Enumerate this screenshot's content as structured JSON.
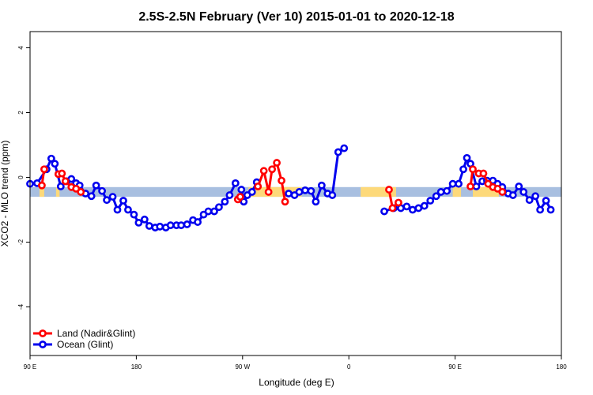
{
  "chart_data": {
    "type": "line",
    "title": "2.5S-2.5N February (Ver 10)   2015-01-01 to 2020-12-18",
    "xlabel": "Longitude (deg E)",
    "ylabel": "XCO2 - MLO trend (ppm)",
    "xlim": [
      90,
      540
    ],
    "ylim": [
      -5.5,
      4.5
    ],
    "x_ticks": [
      {
        "value": 90,
        "label": "90 E"
      },
      {
        "value": 180,
        "label": "180"
      },
      {
        "value": 270,
        "label": "90 W"
      },
      {
        "value": 360,
        "label": "0"
      },
      {
        "value": 450,
        "label": "90 E"
      },
      {
        "value": 540,
        "label": "180"
      }
    ],
    "y_ticks": [
      {
        "value": -4,
        "label": "-4"
      },
      {
        "value": -2,
        "label": "-2"
      },
      {
        "value": 0,
        "label": "0"
      },
      {
        "value": 2,
        "label": "2"
      },
      {
        "value": 4,
        "label": "4"
      }
    ],
    "legend": {
      "position": "bottom-left",
      "entries": [
        {
          "label": "Land (Nadir&Glint)",
          "color": "#ff0000"
        },
        {
          "label": "Ocean (Glint)",
          "color": "#0000ee"
        }
      ]
    },
    "background_band": {
      "y_range": [
        -0.6,
        -0.3
      ],
      "ocean_color": "#a8bfe0",
      "land_color": "#fdd97a",
      "land_intervals": [
        [
          98,
          102
        ],
        [
          112,
          115
        ],
        [
          275,
          320
        ],
        [
          370,
          400
        ],
        [
          448,
          455
        ],
        [
          465,
          487
        ]
      ]
    },
    "series": [
      {
        "name": "Land (Nadir&Glint)",
        "color": "#ff0000",
        "segments": [
          [
            [
              100,
              -0.25
            ],
            [
              102,
              0.25
            ]
          ],
          [
            [
              114,
              0.1
            ],
            [
              117,
              0.12
            ],
            [
              120,
              -0.12
            ],
            [
              125,
              -0.3
            ],
            [
              129,
              -0.35
            ],
            [
              133,
              -0.45
            ]
          ],
          [
            [
              266,
              -0.68
            ],
            [
              268,
              -0.6
            ]
          ],
          [
            [
              283,
              -0.28
            ],
            [
              288,
              0.2
            ],
            [
              292,
              -0.45
            ],
            [
              295,
              0.25
            ],
            [
              299,
              0.45
            ],
            [
              303,
              -0.1
            ],
            [
              306,
              -0.75
            ]
          ],
          [
            [
              394,
              -0.38
            ],
            [
              397,
              -0.95
            ],
            [
              402,
              -0.78
            ]
          ],
          [
            [
              463,
              -0.28
            ],
            [
              465,
              0.25
            ],
            [
              470,
              0.12
            ],
            [
              474,
              0.12
            ],
            [
              478,
              -0.2
            ],
            [
              482,
              -0.3
            ],
            [
              486,
              -0.35
            ],
            [
              490,
              -0.45
            ]
          ]
        ]
      },
      {
        "name": "Ocean (Glint)",
        "color": "#0000ee",
        "segments": [
          [
            [
              90,
              -0.2
            ],
            [
              96,
              -0.18
            ],
            [
              104,
              0.25
            ],
            [
              108,
              0.58
            ],
            [
              111,
              0.42
            ],
            [
              116,
              -0.28
            ],
            [
              121,
              -0.12
            ],
            [
              125,
              -0.05
            ],
            [
              129,
              -0.18
            ],
            [
              132,
              -0.25
            ],
            [
              137,
              -0.5
            ],
            [
              142,
              -0.58
            ],
            [
              146,
              -0.25
            ],
            [
              151,
              -0.42
            ],
            [
              155,
              -0.7
            ],
            [
              160,
              -0.6
            ],
            [
              164,
              -1.0
            ],
            [
              169,
              -0.72
            ],
            [
              173,
              -1.0
            ],
            [
              178,
              -1.15
            ],
            [
              182,
              -1.4
            ],
            [
              187,
              -1.3
            ],
            [
              191,
              -1.5
            ],
            [
              196,
              -1.55
            ],
            [
              200,
              -1.52
            ],
            [
              205,
              -1.55
            ],
            [
              209,
              -1.48
            ],
            [
              214,
              -1.48
            ],
            [
              218,
              -1.48
            ],
            [
              223,
              -1.45
            ],
            [
              228,
              -1.32
            ],
            [
              232,
              -1.38
            ],
            [
              237,
              -1.15
            ],
            [
              241,
              -1.05
            ],
            [
              246,
              -1.05
            ],
            [
              250,
              -0.92
            ],
            [
              255,
              -0.75
            ],
            [
              259,
              -0.55
            ],
            [
              264,
              -0.18
            ]
          ],
          [
            [
              269,
              -0.38
            ],
            [
              271,
              -0.75
            ],
            [
              274,
              -0.55
            ],
            [
              278,
              -0.45
            ],
            [
              282,
              -0.15
            ]
          ],
          [
            [
              309,
              -0.5
            ],
            [
              314,
              -0.55
            ],
            [
              318,
              -0.45
            ],
            [
              323,
              -0.4
            ],
            [
              328,
              -0.42
            ],
            [
              332,
              -0.75
            ],
            [
              337,
              -0.25
            ],
            [
              342,
              -0.5
            ],
            [
              346,
              -0.55
            ],
            [
              351,
              0.78
            ],
            [
              356,
              0.9
            ]
          ],
          [
            [
              390,
              -1.05
            ],
            [
              398,
              -0.95
            ],
            [
              404,
              -0.95
            ],
            [
              409,
              -0.9
            ],
            [
              414,
              -1.0
            ],
            [
              419,
              -0.95
            ],
            [
              424,
              -0.88
            ],
            [
              429,
              -0.72
            ],
            [
              434,
              -0.58
            ],
            [
              438,
              -0.45
            ],
            [
              443,
              -0.42
            ],
            [
              448,
              -0.2
            ],
            [
              453,
              -0.2
            ],
            [
              457,
              0.25
            ],
            [
              460,
              0.6
            ],
            [
              463,
              0.42
            ],
            [
              468,
              -0.28
            ],
            [
              473,
              -0.12
            ],
            [
              477,
              -0.1
            ],
            [
              482,
              -0.1
            ],
            [
              486,
              -0.2
            ],
            [
              490,
              -0.3
            ],
            [
              495,
              -0.5
            ],
            [
              499,
              -0.55
            ],
            [
              504,
              -0.28
            ],
            [
              508,
              -0.45
            ],
            [
              513,
              -0.7
            ],
            [
              518,
              -0.58
            ],
            [
              522,
              -1.0
            ],
            [
              527,
              -0.72
            ],
            [
              531,
              -1.0
            ]
          ]
        ]
      }
    ]
  }
}
